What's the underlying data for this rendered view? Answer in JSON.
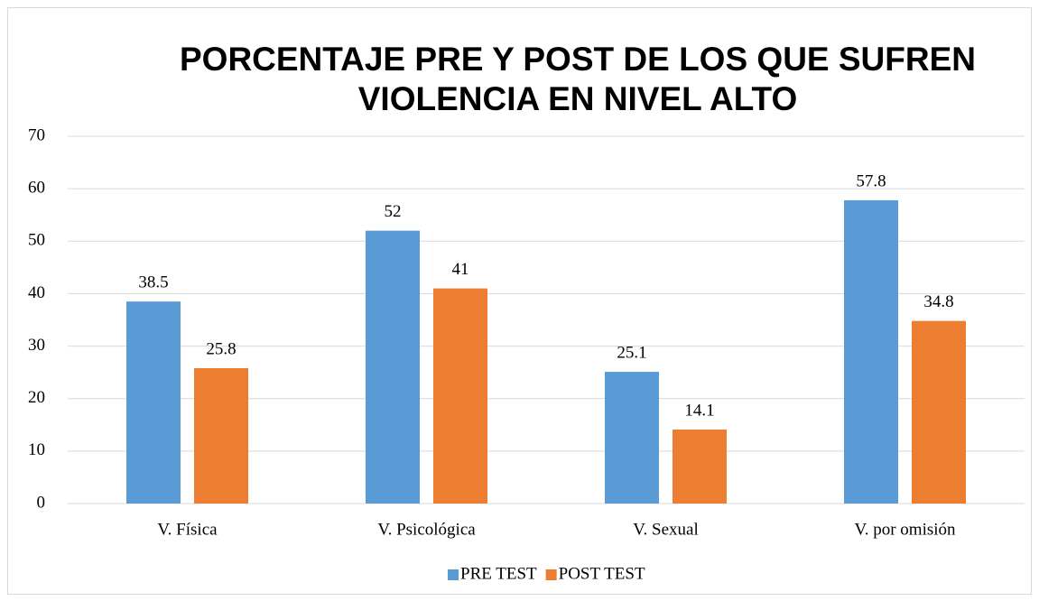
{
  "chart_data": {
    "type": "bar",
    "title": "PORCENTAJE PRE Y POST DE LOS QUE SUFREN VIOLENCIA EN NIVEL ALTO",
    "categories": [
      "V. Física",
      "V. Psicológica",
      "V. Sexual",
      "V. por omisión"
    ],
    "series": [
      {
        "name": "PRE TEST",
        "color": "#5b9bd5",
        "values": [
          38.5,
          52,
          25.1,
          57.8
        ]
      },
      {
        "name": "POST TEST",
        "color": "#ed7d31",
        "values": [
          25.8,
          41,
          14.1,
          34.8
        ]
      }
    ],
    "ylim": [
      0,
      70
    ],
    "yticks": [
      0,
      10,
      20,
      30,
      40,
      50,
      60,
      70
    ],
    "grid": true,
    "legend": "bottom"
  }
}
